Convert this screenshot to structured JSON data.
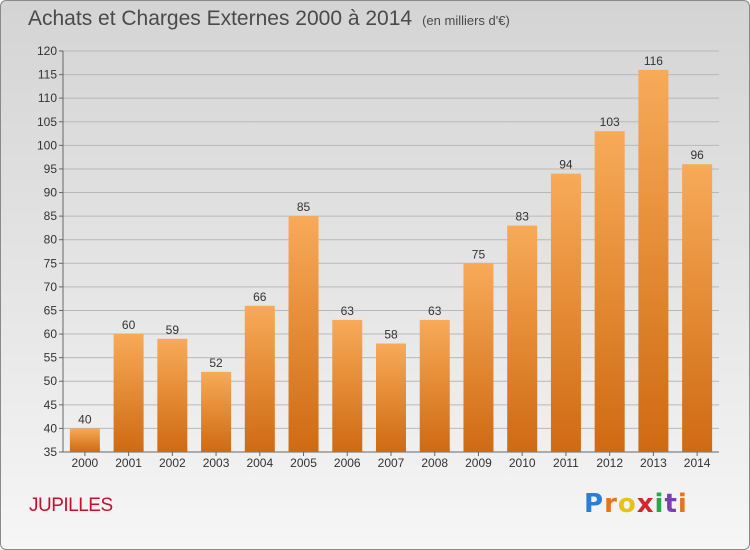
{
  "header": {
    "title": "Achats et Charges Externes 2000 à 2014",
    "subtitle": "(en milliers d'€)"
  },
  "footer": {
    "place": "JUPILLES",
    "logo": "Proxiti",
    "logo_colors": [
      "#2a7fd4",
      "#e8741a",
      "#e8c21a",
      "#d4262e",
      "#2aa84a",
      "#7a3fb0",
      "#e8741a"
    ]
  },
  "colors": {
    "bar_top": "#f8aa58",
    "bar_bottom": "#cf6a12",
    "grid": "#b8b8b8",
    "text": "#333333"
  },
  "chart_data": {
    "type": "bar",
    "categories": [
      "2000",
      "2001",
      "2002",
      "2003",
      "2004",
      "2005",
      "2006",
      "2007",
      "2008",
      "2009",
      "2010",
      "2011",
      "2012",
      "2013",
      "2014"
    ],
    "values": [
      40,
      60,
      59,
      52,
      66,
      85,
      63,
      58,
      63,
      75,
      83,
      94,
      103,
      116,
      96
    ],
    "ylim": [
      35,
      120
    ],
    "yticks": [
      35,
      40,
      45,
      50,
      55,
      60,
      65,
      70,
      75,
      80,
      85,
      90,
      95,
      100,
      105,
      110,
      115,
      120
    ],
    "grid": true
  }
}
